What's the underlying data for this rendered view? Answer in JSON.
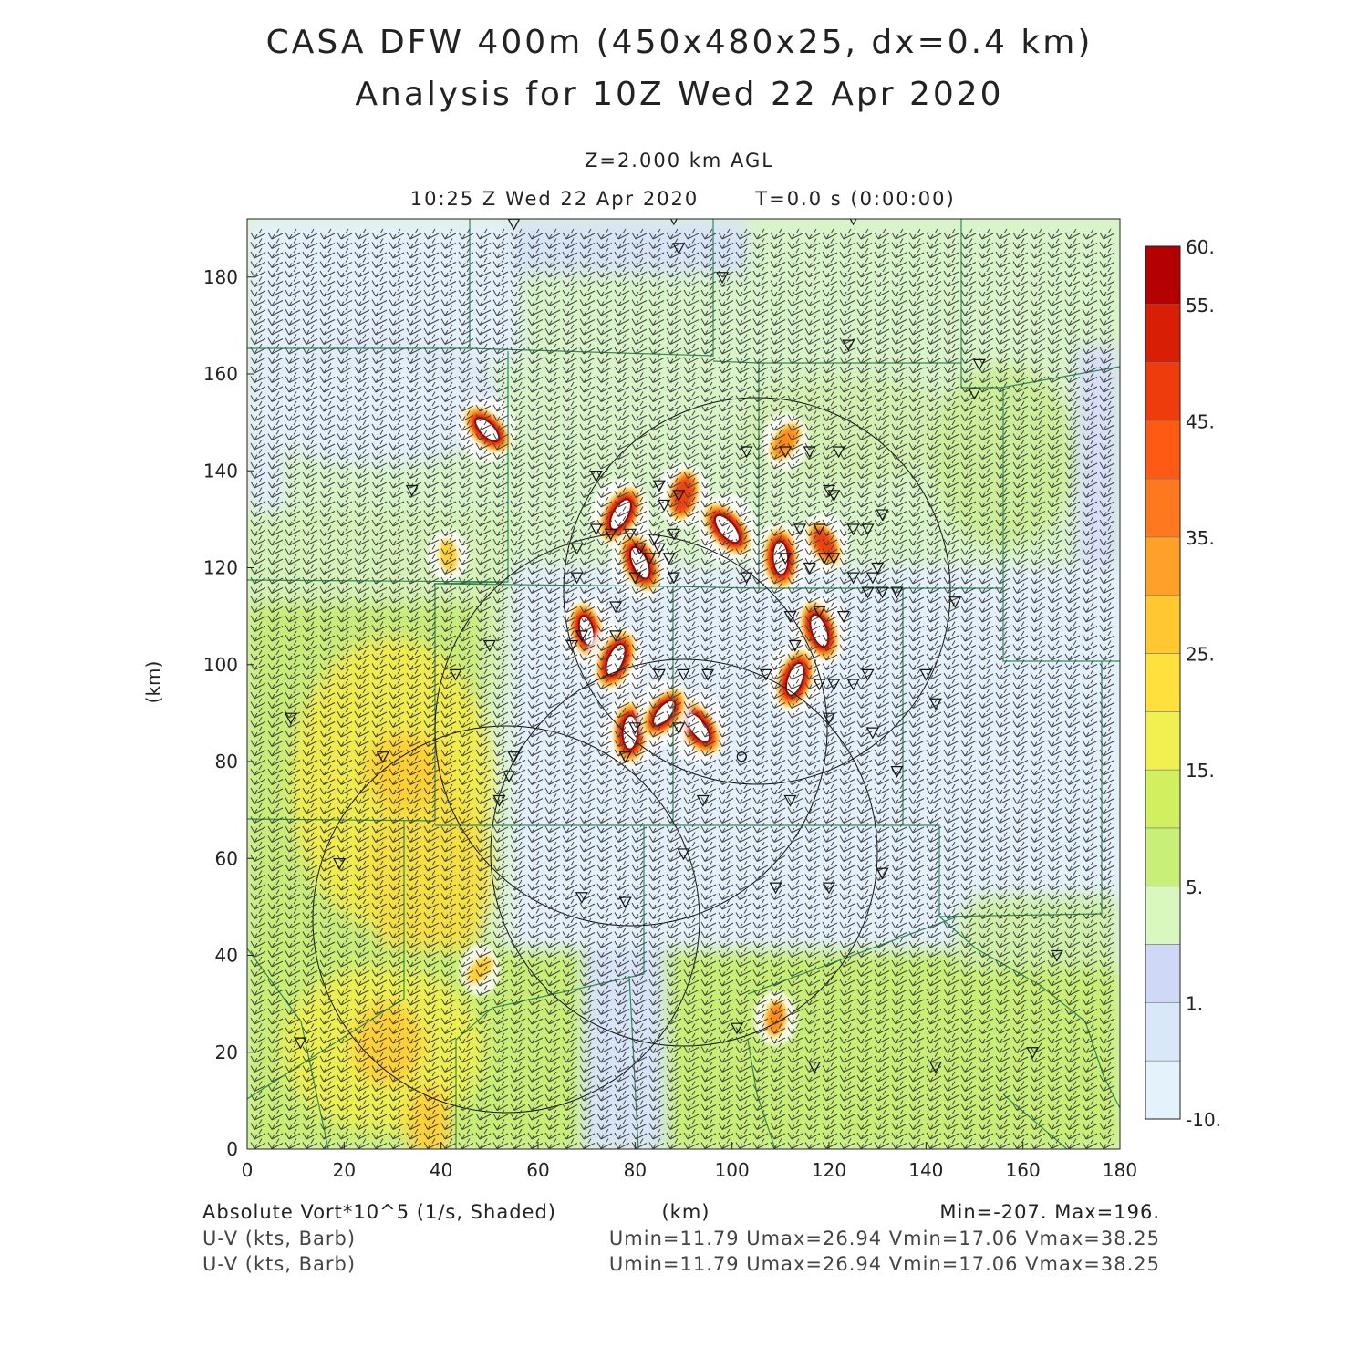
{
  "title_line1": "CASA DFW 400m (450x480x25, dx=0.4 km)",
  "title_line2": "Analysis for 10Z Wed 22 Apr 2020",
  "level_label": "Z=2.000 km AGL",
  "time_label": "10:25 Z Wed 22 Apr 2020",
  "t_label": "T=0.0 s (0:00:00)",
  "chart_data": {
    "type": "heatmap",
    "xlabel": "(km)",
    "ylabel": "(km)",
    "xlim": [
      0,
      180
    ],
    "ylim": [
      0,
      192
    ],
    "x_ticks": [
      "0",
      "20",
      "40",
      "60",
      "80",
      "100",
      "120",
      "140",
      "160",
      "180"
    ],
    "y_ticks": [
      "0",
      "20",
      "40",
      "60",
      "80",
      "100",
      "120",
      "140",
      "160",
      "180"
    ],
    "colorbar": {
      "labels": [
        "60.",
        "55.",
        "45.",
        "35.",
        "25.",
        "15.",
        "5.",
        "1.",
        "-10."
      ],
      "colors": [
        "#b40000",
        "#d81e05",
        "#f03c0c",
        "#ff5a14",
        "#ff781e",
        "#ffa028",
        "#ffc830",
        "#ffe03c",
        "#f0f050",
        "#d0f060",
        "#c8f078",
        "#d8f8c0",
        "#d0d8f8",
        "#d8e8f8",
        "#e4f2fc"
      ]
    },
    "features": [
      {
        "name": "vortex",
        "x": 49.5,
        "y": 148.5,
        "value": 55
      },
      {
        "name": "vortex",
        "x": 41.5,
        "y": 122.5,
        "value": 30
      },
      {
        "name": "vortex",
        "x": 77,
        "y": 131,
        "value": 60
      },
      {
        "name": "vortex",
        "x": 81,
        "y": 121,
        "value": 60
      },
      {
        "name": "vortex",
        "x": 90,
        "y": 135,
        "value": 50
      },
      {
        "name": "vortex",
        "x": 99,
        "y": 128,
        "value": 60
      },
      {
        "name": "vortex",
        "x": 110,
        "y": 122,
        "value": 60
      },
      {
        "name": "vortex",
        "x": 111,
        "y": 146,
        "value": 40
      },
      {
        "name": "vortex",
        "x": 118,
        "y": 107,
        "value": 60
      },
      {
        "name": "vortex",
        "x": 113,
        "y": 97,
        "value": 60
      },
      {
        "name": "vortex",
        "x": 93,
        "y": 87,
        "value": 60
      },
      {
        "name": "vortex",
        "x": 79,
        "y": 86,
        "value": 60
      },
      {
        "name": "vortex",
        "x": 86,
        "y": 90,
        "value": 55
      },
      {
        "name": "vortex",
        "x": 70,
        "y": 107,
        "value": 55
      },
      {
        "name": "vortex",
        "x": 76,
        "y": 101,
        "value": 60
      },
      {
        "name": "vortex",
        "x": 119,
        "y": 125,
        "value": 45
      },
      {
        "name": "vortex",
        "x": 109,
        "y": 27,
        "value": 35
      },
      {
        "name": "vortex",
        "x": 48,
        "y": 37,
        "value": 30
      }
    ]
  },
  "footer": {
    "field_label": "Absolute Vort*10^5 (1/s, Shaded)",
    "x_unit": "(km)",
    "minmax": "Min=-207. Max=196.",
    "barb_label_1": "U-V (kts, Barb)",
    "barb_stats_1": "Umin=11.79 Umax=26.94 Vmin=17.06 Vmax=38.25",
    "barb_label_2": "U-V (kts, Barb)",
    "barb_stats_2": "Umin=11.79 Umax=26.94 Vmin=17.06 Vmax=38.25"
  }
}
